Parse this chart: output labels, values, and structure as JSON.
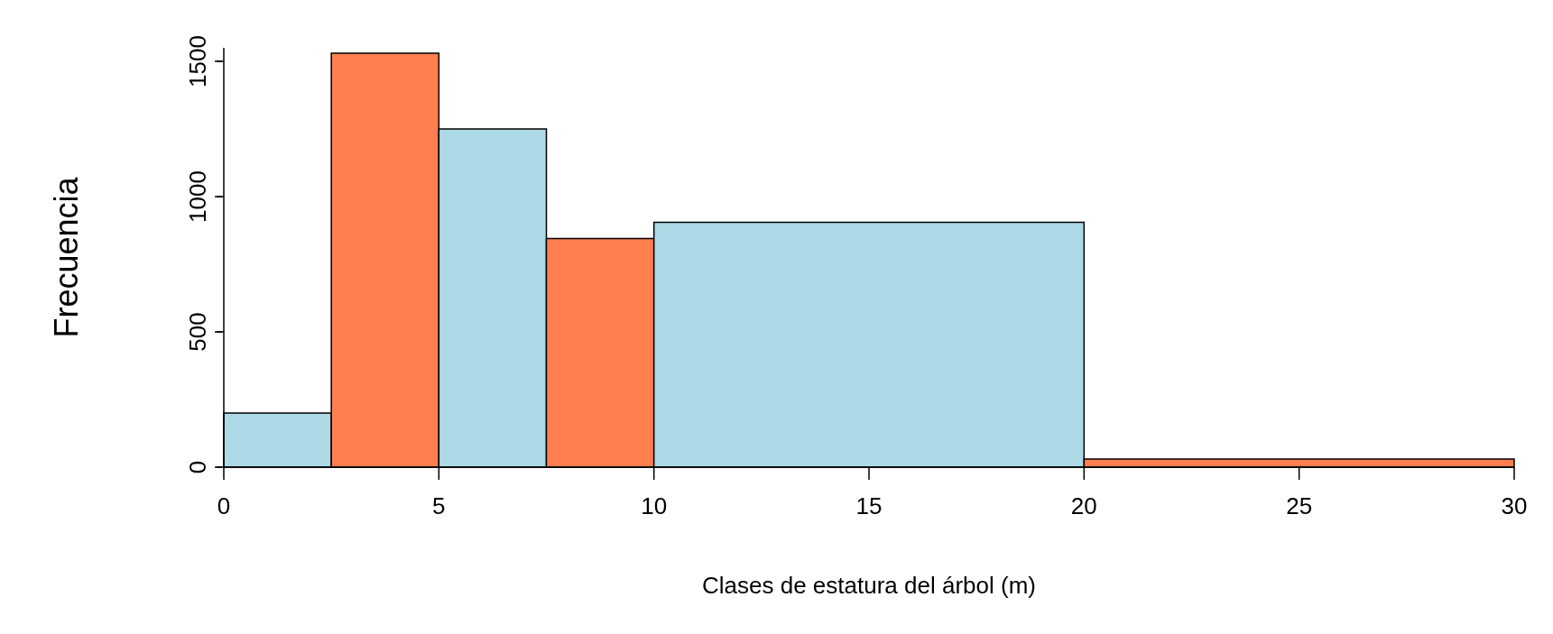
{
  "chart_data": {
    "type": "histogram",
    "xlabel": "Clases de estatura del árbol (m)",
    "ylabel": "Frecuencia",
    "bins": [
      0,
      2.5,
      5,
      7.5,
      10,
      20,
      30
    ],
    "values": [
      200,
      1530,
      1250,
      845,
      905,
      30
    ],
    "colors": [
      "#add8e6",
      "#ff7f50",
      "#add8e6",
      "#ff7f50",
      "#add8e6",
      "#ff7f50"
    ],
    "xlim": [
      0,
      30
    ],
    "xticks": [
      0,
      5,
      10,
      15,
      20,
      25,
      30
    ],
    "ylim": [
      0,
      1550
    ],
    "yticks": [
      0,
      500,
      1000,
      1500
    ]
  }
}
